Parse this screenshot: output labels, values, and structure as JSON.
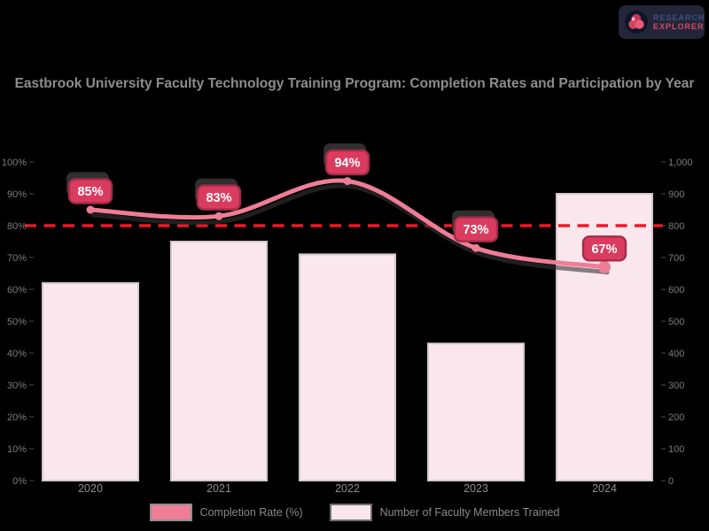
{
  "brand": {
    "line1": "RESEARCH",
    "line2": "EXPLORER",
    "icon": "pinwheel-logo-icon",
    "box_color": "#232638",
    "accent_color": "#d9405e"
  },
  "chart_data": {
    "type": "bar",
    "combo": "bar+line",
    "title": "Eastbrook University Faculty Technology Training Program: Completion Rates and Participation by Year",
    "categories": [
      "2020",
      "2021",
      "2022",
      "2023",
      "2024"
    ],
    "series": [
      {
        "name": "Completion Rate (%)",
        "type": "line",
        "axis": "left",
        "color": "#ef7d96",
        "swatch_border": "#8f8f8f",
        "values": [
          85,
          83,
          94,
          73,
          67
        ],
        "point_labels": [
          "85%",
          "83%",
          "94%",
          "73%",
          "67%"
        ]
      },
      {
        "name": "Number of Faculty Members Trained",
        "type": "bar",
        "axis": "right",
        "color": "#f9e7ed",
        "border_color": "#d2c8cd",
        "swatch_border": "#6e6e6e",
        "values": [
          620,
          750,
          710,
          430,
          900
        ]
      }
    ],
    "left_axis": {
      "min": 0,
      "max": 100,
      "step": 10,
      "suffix": "%"
    },
    "right_axis": {
      "min": 0,
      "max": 1000,
      "step": 100,
      "suffix": ""
    },
    "target_line": {
      "value": 80,
      "color": "#ef1826",
      "style": "dashed"
    },
    "badge": {
      "fill": "#da3c5f",
      "border": "#a52c47",
      "text_color": "#ffffff"
    },
    "legend_position": "bottom",
    "grid": false,
    "background": "#000000",
    "text_color": "#8d8d8d",
    "axis_label_color": "#7c7c7c"
  }
}
